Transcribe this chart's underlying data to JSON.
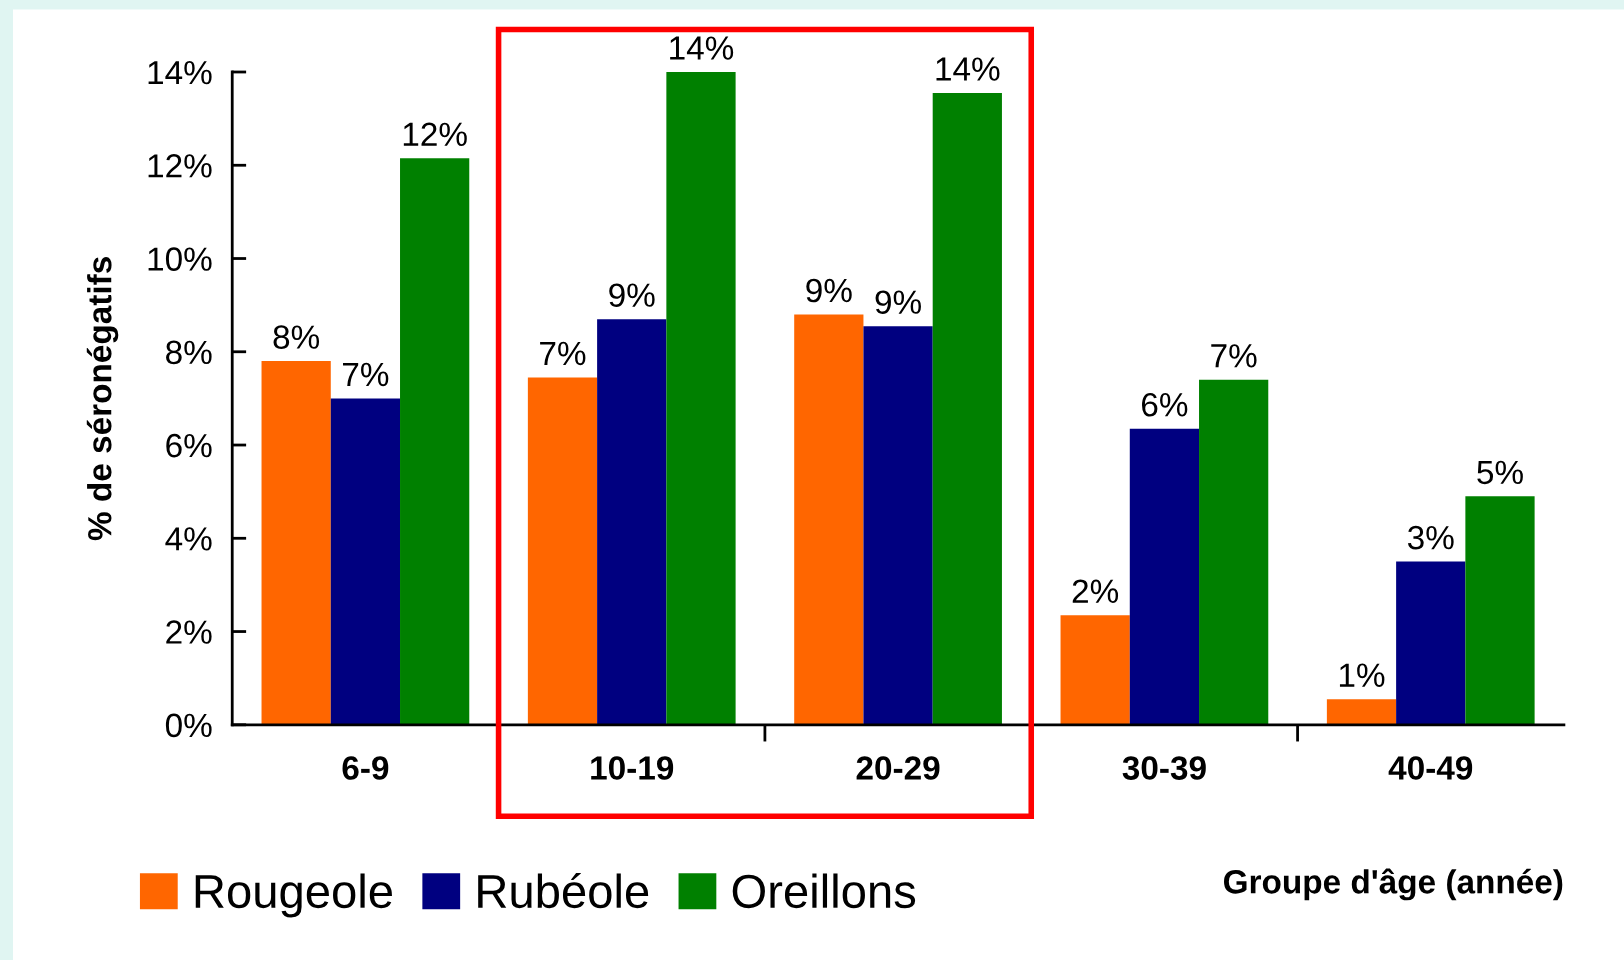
{
  "chart_data": {
    "type": "bar",
    "xlabel": "Groupe d'âge (année)",
    "ylabel": "% de séronégatifs",
    "categories": [
      "6-9",
      "10-19",
      "20-29",
      "30-39",
      "40-49"
    ],
    "series": [
      {
        "name": "Rougeole",
        "color": "#ff6600",
        "values": [
          7.8,
          7.45,
          8.8,
          2.35,
          0.55
        ],
        "value_labels": [
          "8%",
          "7%",
          "9%",
          "2%",
          "1%"
        ]
      },
      {
        "name": "Rubéole",
        "color": "#000080",
        "values": [
          7.0,
          8.7,
          8.55,
          6.35,
          3.5
        ],
        "value_labels": [
          "7%",
          "9%",
          "9%",
          "6%",
          "3%"
        ]
      },
      {
        "name": "Oreillons",
        "color": "#008000",
        "values": [
          12.15,
          14.0,
          13.55,
          7.4,
          4.9
        ],
        "value_labels": [
          "12%",
          "14%",
          "14%",
          "7%",
          "5%"
        ]
      }
    ],
    "ylim": [
      0,
      14
    ],
    "yticks": [
      {
        "value": 0,
        "label": "0%"
      },
      {
        "value": 2,
        "label": "2%"
      },
      {
        "value": 4,
        "label": "4%"
      },
      {
        "value": 6,
        "label": "6%"
      },
      {
        "value": 8,
        "label": "8%"
      },
      {
        "value": 10,
        "label": "10%"
      },
      {
        "value": 12,
        "label": "12%"
      },
      {
        "value": 14,
        "label": "14%"
      }
    ],
    "grid": false,
    "legend": "bottom left"
  }
}
